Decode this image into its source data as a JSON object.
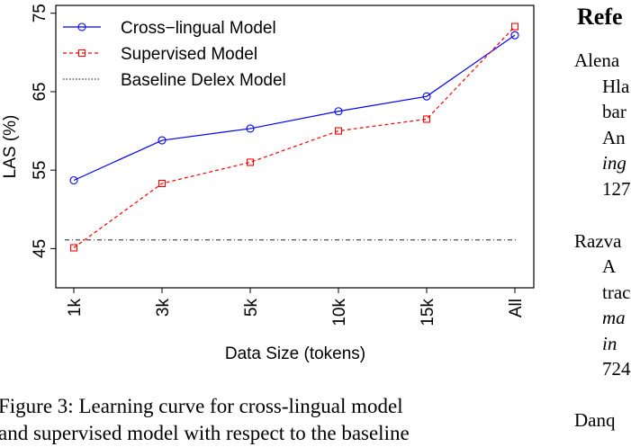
{
  "chart_data": {
    "type": "line",
    "categories": [
      "1k",
      "3k",
      "5k",
      "10k",
      "15k",
      "All"
    ],
    "xlabel": "Data Size (tokens)",
    "ylabel": "LAS (%)",
    "ylim": [
      40,
      76
    ],
    "yticks": [
      45,
      55,
      65,
      75
    ],
    "grid": false,
    "legend_position": "top-left",
    "series": [
      {
        "name": "Cross−lingual Model",
        "values": [
          53.7,
          58.8,
          60.3,
          62.5,
          64.4,
          72.2
        ],
        "color": "#0000ff",
        "line_style": "solid",
        "marker": "circle"
      },
      {
        "name": "Supervised Model",
        "values": [
          45.1,
          53.3,
          56.0,
          60.0,
          61.5,
          73.3
        ],
        "color": "#ff0000",
        "line_style": "dashed",
        "marker": "square"
      },
      {
        "name": "Baseline Delex Model",
        "values": [
          46.1,
          46.1,
          46.1,
          46.1,
          46.1,
          46.1
        ],
        "color": "#000000",
        "line_style": "dotted",
        "marker": "none"
      }
    ]
  },
  "caption": {
    "line1": "Figure 3: Learning curve for cross-lingual model",
    "line2": "and supervised model with respect to the baseline"
  },
  "references": {
    "heading": "Refe",
    "lines": [
      {
        "text": "Alena",
        "style": "normal"
      },
      {
        "text": "Hla",
        "style": "normal"
      },
      {
        "text": "bar",
        "style": "normal"
      },
      {
        "text": "An",
        "style": "normal"
      },
      {
        "text": "ing",
        "style": "italic"
      },
      {
        "text": "127",
        "style": "normal"
      },
      {
        "text": "Razva",
        "style": "normal"
      },
      {
        "text": "A",
        "style": "normal"
      },
      {
        "text": "trac",
        "style": "normal"
      },
      {
        "text": "ma",
        "style": "italic"
      },
      {
        "text": "in",
        "style": "italic"
      },
      {
        "text": "724",
        "style": "normal"
      },
      {
        "text": "Danq",
        "style": "normal"
      }
    ]
  }
}
